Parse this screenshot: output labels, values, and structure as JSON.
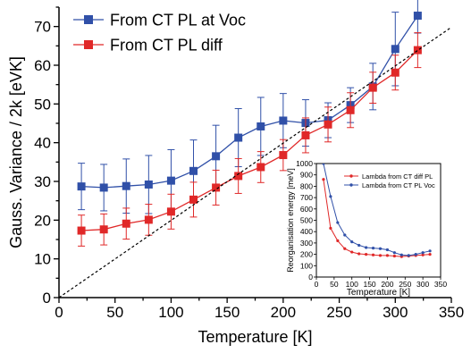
{
  "chart_data": [
    {
      "type": "scatter",
      "xlabel": "Temperature [K]",
      "ylabel": "Gauss. Variance / 2k [eVK]",
      "xlim": [
        0,
        350
      ],
      "ylim": [
        0,
        75
      ],
      "xticks": [
        0,
        50,
        100,
        150,
        200,
        250,
        300,
        350
      ],
      "yticks": [
        0,
        10,
        20,
        30,
        40,
        50,
        60,
        70
      ],
      "grid": false,
      "legend_position": "top-left",
      "series": [
        {
          "name": "From CT PL at Voc",
          "color": "#3050a8",
          "marker": "square",
          "line": true,
          "x": [
            20,
            40,
            60,
            80,
            100,
            120,
            140,
            160,
            180,
            200,
            220,
            240,
            260,
            280,
            300,
            320
          ],
          "y": [
            28.7,
            28.4,
            28.8,
            29.2,
            30.2,
            32.7,
            36.5,
            41.3,
            44.2,
            45.7,
            45.1,
            45.8,
            49.7,
            54.5,
            64.2,
            72.8
          ],
          "error": [
            6.0,
            6.0,
            7.0,
            7.5,
            8.0,
            8.0,
            8.0,
            7.5,
            7.5,
            7.0,
            6.0,
            4.5,
            4.5,
            6.0,
            9.5,
            4.5
          ]
        },
        {
          "name": "From CT PL diff",
          "color": "#e02828",
          "marker": "square",
          "line": true,
          "x": [
            20,
            40,
            60,
            80,
            100,
            120,
            140,
            160,
            180,
            200,
            220,
            240,
            260,
            280,
            300,
            320
          ],
          "y": [
            17.3,
            17.6,
            19.1,
            20.1,
            22.2,
            25.3,
            28.4,
            31.4,
            33.7,
            36.8,
            41.9,
            44.7,
            48.4,
            54.2,
            58.1,
            63.9
          ],
          "error": [
            4.0,
            4.0,
            4.0,
            4.0,
            4.5,
            4.5,
            4.5,
            4.5,
            4.0,
            4.0,
            4.5,
            4.5,
            4.5,
            4.0,
            4.5,
            4.5
          ]
        },
        {
          "name": "",
          "color": "#000000",
          "dashed": true,
          "line": true,
          "marker": "none",
          "x": [
            0,
            350
          ],
          "y": [
            0,
            69.8
          ]
        }
      ]
    },
    {
      "type": "line",
      "placement": "inset-bottom-right",
      "xlabel": "Temperature [K]",
      "ylabel": "Reorganisation energy [meV]",
      "xlim": [
        0,
        350
      ],
      "ylim": [
        0,
        1000
      ],
      "xticks": [
        0,
        50,
        100,
        150,
        200,
        250,
        300,
        350
      ],
      "yticks": [
        0,
        100,
        200,
        300,
        400,
        500,
        600,
        700,
        800,
        900,
        1000
      ],
      "legend_position": "top-right",
      "series": [
        {
          "name": "Lambda from CT diff PL",
          "color": "#e02828",
          "marker": "circle",
          "x": [
            20,
            40,
            60,
            80,
            100,
            120,
            140,
            160,
            180,
            200,
            220,
            240,
            260,
            280,
            300,
            320
          ],
          "y": [
            860,
            430,
            320,
            250,
            220,
            205,
            200,
            195,
            190,
            190,
            185,
            180,
            185,
            190,
            195,
            200
          ]
        },
        {
          "name": "Lambda from CT PL Voc",
          "color": "#3050a8",
          "marker": "circle",
          "x": [
            20,
            40,
            60,
            80,
            100,
            120,
            140,
            160,
            180,
            200,
            220,
            240,
            260,
            280,
            300,
            320
          ],
          "y": [
            1000,
            710,
            480,
            370,
            310,
            280,
            260,
            255,
            250,
            240,
            215,
            195,
            190,
            200,
            215,
            230
          ]
        }
      ]
    }
  ]
}
